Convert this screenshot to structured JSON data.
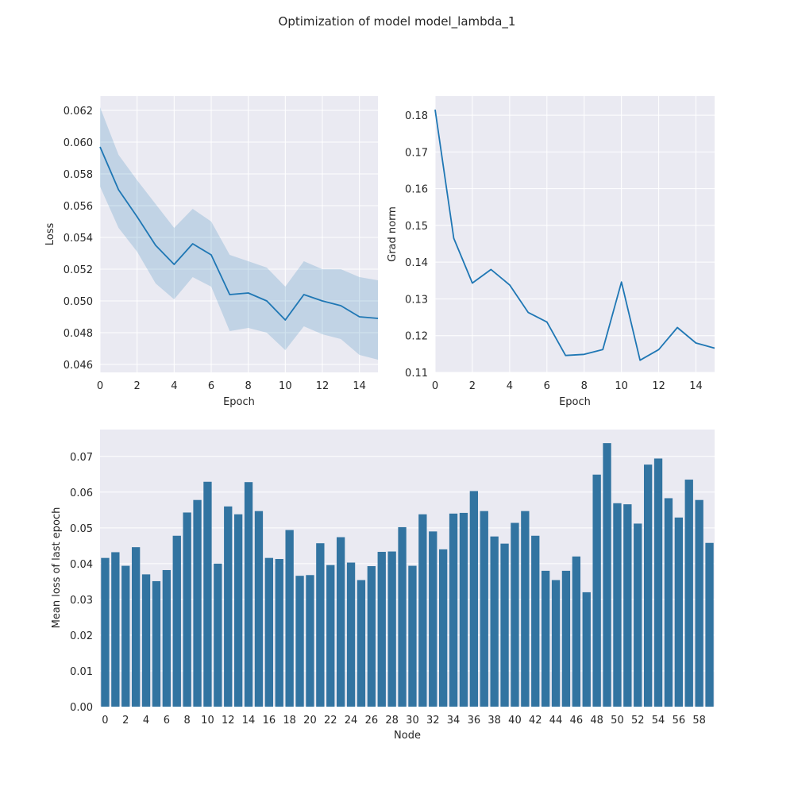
{
  "figure": {
    "title": "Optimization of model model_lambda_1"
  },
  "colors": {
    "plot_bg": "#EAEAF2",
    "grid": "#FFFFFF",
    "line": "#1F77B4",
    "band": "#1F77B4",
    "bar": "#3274A1",
    "text": "#262626"
  },
  "chart_data": [
    {
      "id": "loss",
      "type": "line",
      "title": "",
      "xlabel": "Epoch",
      "ylabel": "Loss",
      "xlim": [
        0,
        15
      ],
      "ylim": [
        0.0455,
        0.0629
      ],
      "xticks": [
        0,
        2,
        4,
        6,
        8,
        10,
        12,
        14
      ],
      "xtick_labels": [
        "0",
        "2",
        "4",
        "6",
        "8",
        "10",
        "12",
        "14"
      ],
      "yticks": [
        0.046,
        0.048,
        0.05,
        0.052,
        0.054,
        0.056,
        0.058,
        0.06,
        0.062
      ],
      "ytick_labels": [
        "0.046",
        "0.048",
        "0.050",
        "0.052",
        "0.054",
        "0.056",
        "0.058",
        "0.060",
        "0.062"
      ],
      "grid": true,
      "x": [
        0,
        1,
        2,
        3,
        4,
        5,
        6,
        7,
        8,
        9,
        10,
        11,
        12,
        13,
        14,
        15
      ],
      "y": [
        0.0597,
        0.057,
        0.0553,
        0.0535,
        0.0523,
        0.0536,
        0.0529,
        0.0504,
        0.0505,
        0.05,
        0.0488,
        0.0504,
        0.05,
        0.0497,
        0.049,
        0.0489
      ],
      "ci_low": [
        0.0572,
        0.0546,
        0.0531,
        0.0511,
        0.0501,
        0.0515,
        0.0509,
        0.0481,
        0.0483,
        0.048,
        0.0469,
        0.0484,
        0.0479,
        0.0476,
        0.0466,
        0.0463
      ],
      "ci_high": [
        0.0622,
        0.0592,
        0.0576,
        0.0561,
        0.0546,
        0.0558,
        0.055,
        0.0529,
        0.0525,
        0.0521,
        0.0509,
        0.0525,
        0.052,
        0.052,
        0.0515,
        0.0513
      ]
    },
    {
      "id": "gradnorm",
      "type": "line",
      "title": "",
      "xlabel": "Epoch",
      "ylabel": "Grad norm",
      "xlim": [
        0,
        15
      ],
      "ylim": [
        0.11,
        0.1852
      ],
      "xticks": [
        0,
        2,
        4,
        6,
        8,
        10,
        12,
        14
      ],
      "xtick_labels": [
        "0",
        "2",
        "4",
        "6",
        "8",
        "10",
        "12",
        "14"
      ],
      "yticks": [
        0.11,
        0.12,
        0.13,
        0.14,
        0.15,
        0.16,
        0.17,
        0.18
      ],
      "ytick_labels": [
        "0.11",
        "0.12",
        "0.13",
        "0.14",
        "0.15",
        "0.16",
        "0.17",
        "0.18"
      ],
      "grid": true,
      "x": [
        0,
        1,
        2,
        3,
        4,
        5,
        6,
        7,
        8,
        9,
        10,
        11,
        12,
        13,
        14,
        15
      ],
      "y": [
        0.1815,
        0.1465,
        0.1343,
        0.138,
        0.1338,
        0.1263,
        0.1237,
        0.1146,
        0.1149,
        0.1162,
        0.1346,
        0.1133,
        0.1162,
        0.1222,
        0.118,
        0.1166
      ]
    },
    {
      "id": "nodes",
      "type": "bar",
      "title": "",
      "xlabel": "Node",
      "ylabel": "Mean loss of last epoch",
      "ylim": [
        0,
        0.0775
      ],
      "yticks": [
        0,
        0.01,
        0.02,
        0.03,
        0.04,
        0.05,
        0.06,
        0.07
      ],
      "ytick_labels": [
        "0.00",
        "0.01",
        "0.02",
        "0.03",
        "0.04",
        "0.05",
        "0.06",
        "0.07"
      ],
      "grid": true,
      "categories": [
        "0",
        "1",
        "2",
        "3",
        "4",
        "5",
        "6",
        "7",
        "8",
        "9",
        "10",
        "11",
        "12",
        "13",
        "14",
        "15",
        "16",
        "17",
        "18",
        "19",
        "20",
        "21",
        "22",
        "23",
        "24",
        "25",
        "26",
        "27",
        "28",
        "29",
        "30",
        "31",
        "32",
        "33",
        "34",
        "35",
        "36",
        "37",
        "38",
        "39",
        "40",
        "41",
        "42",
        "43",
        "44",
        "45",
        "46",
        "47",
        "48",
        "49",
        "50",
        "51",
        "52",
        "53",
        "54",
        "55",
        "56",
        "57",
        "58",
        "59"
      ],
      "xtick_labels": [
        "0",
        "2",
        "4",
        "6",
        "8",
        "10",
        "12",
        "14",
        "16",
        "18",
        "20",
        "22",
        "24",
        "26",
        "28",
        "30",
        "32",
        "34",
        "36",
        "38",
        "40",
        "42",
        "44",
        "46",
        "48",
        "50",
        "52",
        "54",
        "56",
        "58"
      ],
      "values": [
        0.0416,
        0.0432,
        0.0394,
        0.0446,
        0.037,
        0.0351,
        0.0382,
        0.0478,
        0.0543,
        0.0578,
        0.0629,
        0.04,
        0.056,
        0.0538,
        0.0628,
        0.0547,
        0.0416,
        0.0413,
        0.0494,
        0.0366,
        0.0368,
        0.0457,
        0.0396,
        0.0474,
        0.0403,
        0.0354,
        0.0393,
        0.0433,
        0.0434,
        0.0502,
        0.0394,
        0.0538,
        0.049,
        0.044,
        0.054,
        0.0542,
        0.0603,
        0.0547,
        0.0476,
        0.0456,
        0.0514,
        0.0547,
        0.0478,
        0.038,
        0.0354,
        0.038,
        0.042,
        0.032,
        0.0649,
        0.0737,
        0.0569,
        0.0566,
        0.0512,
        0.0677,
        0.0694,
        0.0583,
        0.0529,
        0.0635,
        0.0578,
        0.0458
      ]
    }
  ]
}
